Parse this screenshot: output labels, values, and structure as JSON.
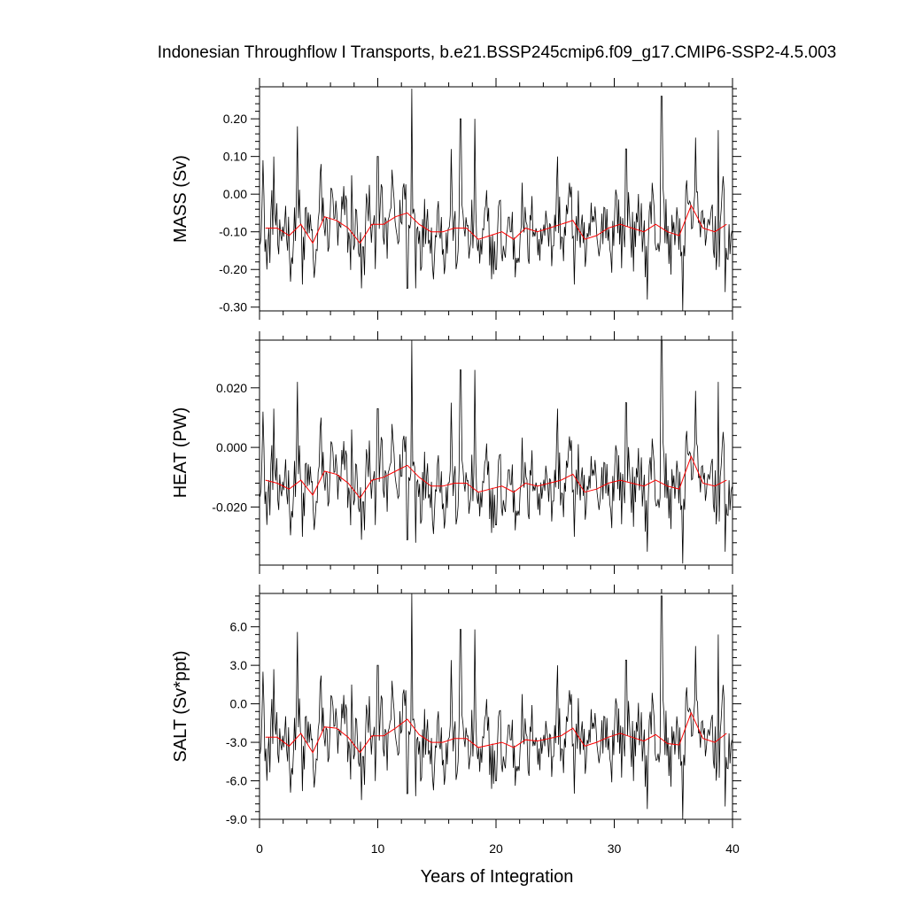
{
  "chart_data": {
    "type": "line",
    "title": "Indonesian Throughflow I Transports, b.e21.BSSP245cmip6.f09_g17.CMIP6-SSP2-4.5.003",
    "xlabel": "Years of Integration",
    "xlim": [
      0,
      40
    ],
    "x_ticks": [
      "0",
      "10",
      "20",
      "30",
      "40"
    ],
    "colors": {
      "monthly": "#000000",
      "annual": "#ff0000"
    },
    "annual_years": [
      0.5,
      1.5,
      2.5,
      3.5,
      4.5,
      5.5,
      6.5,
      7.5,
      8.5,
      9.5,
      10.5,
      11.5,
      12.5,
      13.5,
      14.5,
      15.5,
      16.5,
      17.5,
      18.5,
      19.5,
      20.5,
      21.5,
      22.5,
      23.5,
      24.5,
      25.5,
      26.5,
      27.5,
      28.5,
      29.5,
      30.5,
      31.5,
      32.5,
      33.5,
      34.5,
      35.5,
      36.5,
      37.5,
      38.5,
      39.5
    ],
    "panels": [
      {
        "ylabel": "MASS (Sv)",
        "ylim": [
          -0.31,
          0.285
        ],
        "y_ticks": [
          0.2,
          0.1,
          0.0,
          -0.1,
          -0.2,
          -0.3
        ],
        "y_tick_labels": [
          "0.20",
          "0.10",
          "0.00",
          "-0.10",
          "-0.20",
          "-0.30"
        ],
        "annual_values": [
          -0.09,
          -0.09,
          -0.11,
          -0.08,
          -0.13,
          -0.06,
          -0.07,
          -0.09,
          -0.13,
          -0.08,
          -0.08,
          -0.06,
          -0.05,
          -0.08,
          -0.1,
          -0.1,
          -0.09,
          -0.09,
          -0.12,
          -0.11,
          -0.1,
          -0.12,
          -0.09,
          -0.1,
          -0.09,
          -0.08,
          -0.07,
          -0.12,
          -0.11,
          -0.09,
          -0.08,
          -0.09,
          -0.1,
          -0.08,
          -0.1,
          -0.11,
          -0.03,
          -0.09,
          -0.1,
          -0.08
        ],
        "monthly_peaks": [
          {
            "x": 0.3,
            "y": 0.09
          },
          {
            "x": 0.6,
            "y": -0.2
          },
          {
            "x": 1.2,
            "y": 0.1
          },
          {
            "x": 1.6,
            "y": -0.16
          },
          {
            "x": 3.2,
            "y": 0.18
          },
          {
            "x": 3.6,
            "y": -0.24
          },
          {
            "x": 5.2,
            "y": 0.08
          },
          {
            "x": 7.8,
            "y": 0.05
          },
          {
            "x": 8.6,
            "y": -0.25
          },
          {
            "x": 10.0,
            "y": 0.1
          },
          {
            "x": 12.5,
            "y": -0.25
          },
          {
            "x": 12.9,
            "y": 0.28
          },
          {
            "x": 13.2,
            "y": -0.25
          },
          {
            "x": 16.2,
            "y": 0.12
          },
          {
            "x": 17.0,
            "y": 0.2
          },
          {
            "x": 18.2,
            "y": 0.2
          },
          {
            "x": 20.0,
            "y": -0.2
          },
          {
            "x": 25.2,
            "y": 0.1
          },
          {
            "x": 26.6,
            "y": -0.24
          },
          {
            "x": 31.0,
            "y": 0.12
          },
          {
            "x": 32.8,
            "y": -0.28
          },
          {
            "x": 34.0,
            "y": 0.26
          },
          {
            "x": 35.8,
            "y": -0.31
          },
          {
            "x": 36.9,
            "y": 0.15
          },
          {
            "x": 38.8,
            "y": 0.17
          },
          {
            "x": 39.4,
            "y": -0.26
          }
        ]
      },
      {
        "ylabel": "HEAT (PW)",
        "ylim": [
          -0.0395,
          0.036
        ],
        "y_ticks": [
          0.02,
          0.0,
          -0.02
        ],
        "y_tick_labels": [
          "0.020",
          "0.000",
          "-0.020"
        ],
        "annual_values": [
          -0.011,
          -0.012,
          -0.014,
          -0.011,
          -0.016,
          -0.008,
          -0.009,
          -0.012,
          -0.017,
          -0.011,
          -0.01,
          -0.008,
          -0.006,
          -0.01,
          -0.013,
          -0.013,
          -0.012,
          -0.012,
          -0.015,
          -0.014,
          -0.013,
          -0.015,
          -0.012,
          -0.013,
          -0.012,
          -0.011,
          -0.009,
          -0.015,
          -0.014,
          -0.012,
          -0.011,
          -0.012,
          -0.013,
          -0.011,
          -0.013,
          -0.014,
          -0.003,
          -0.012,
          -0.013,
          -0.011
        ],
        "monthly_peaks": [
          {
            "x": 0.3,
            "y": 0.012
          },
          {
            "x": 0.6,
            "y": -0.026
          },
          {
            "x": 1.2,
            "y": 0.013
          },
          {
            "x": 1.6,
            "y": -0.021
          },
          {
            "x": 3.2,
            "y": 0.022
          },
          {
            "x": 3.6,
            "y": -0.03
          },
          {
            "x": 5.2,
            "y": 0.01
          },
          {
            "x": 7.8,
            "y": 0.006
          },
          {
            "x": 8.6,
            "y": -0.031
          },
          {
            "x": 10.0,
            "y": 0.013
          },
          {
            "x": 12.5,
            "y": -0.031
          },
          {
            "x": 12.9,
            "y": 0.036
          },
          {
            "x": 13.2,
            "y": -0.032
          },
          {
            "x": 16.2,
            "y": 0.015
          },
          {
            "x": 17.0,
            "y": 0.026
          },
          {
            "x": 18.2,
            "y": 0.026
          },
          {
            "x": 20.0,
            "y": -0.026
          },
          {
            "x": 25.2,
            "y": 0.013
          },
          {
            "x": 26.6,
            "y": -0.03
          },
          {
            "x": 31.0,
            "y": 0.015
          },
          {
            "x": 32.8,
            "y": -0.035
          },
          {
            "x": 34.0,
            "y": 0.036
          },
          {
            "x": 35.8,
            "y": -0.039
          },
          {
            "x": 36.9,
            "y": 0.019
          },
          {
            "x": 38.8,
            "y": 0.022
          },
          {
            "x": 39.4,
            "y": -0.035
          }
        ]
      },
      {
        "ylabel": "SALT (Sv*ppt)",
        "ylim": [
          -9.0,
          8.6
        ],
        "y_ticks": [
          6.0,
          3.0,
          0.0,
          -3.0,
          -6.0,
          -9.0
        ],
        "y_tick_labels": [
          "6.0",
          "3.0",
          "0.0",
          "-3.0",
          "-6.0",
          "-9.0"
        ],
        "annual_values": [
          -2.6,
          -2.6,
          -3.3,
          -2.3,
          -3.8,
          -1.8,
          -1.9,
          -2.6,
          -3.8,
          -2.5,
          -2.5,
          -1.9,
          -1.2,
          -2.4,
          -3.0,
          -3.0,
          -2.7,
          -2.7,
          -3.4,
          -3.2,
          -3.0,
          -3.4,
          -2.8,
          -2.9,
          -2.7,
          -2.5,
          -1.9,
          -3.3,
          -3.0,
          -2.6,
          -2.3,
          -2.6,
          -2.9,
          -2.4,
          -3.1,
          -3.2,
          -0.7,
          -2.7,
          -3.0,
          -2.3
        ],
        "monthly_peaks": [
          {
            "x": 0.3,
            "y": 2.5
          },
          {
            "x": 0.6,
            "y": -6.0
          },
          {
            "x": 1.2,
            "y": 2.7
          },
          {
            "x": 1.6,
            "y": -4.6
          },
          {
            "x": 3.2,
            "y": 5.6
          },
          {
            "x": 3.6,
            "y": -6.8
          },
          {
            "x": 5.2,
            "y": 2.2
          },
          {
            "x": 7.8,
            "y": 1.5
          },
          {
            "x": 8.6,
            "y": -7.5
          },
          {
            "x": 10.0,
            "y": 3.0
          },
          {
            "x": 12.5,
            "y": -7.0
          },
          {
            "x": 12.9,
            "y": 8.6
          },
          {
            "x": 13.2,
            "y": -7.2
          },
          {
            "x": 16.2,
            "y": 3.4
          },
          {
            "x": 17.0,
            "y": 5.8
          },
          {
            "x": 18.2,
            "y": 5.8
          },
          {
            "x": 20.0,
            "y": -6.0
          },
          {
            "x": 25.2,
            "y": 3.0
          },
          {
            "x": 26.6,
            "y": -7.0
          },
          {
            "x": 31.0,
            "y": 3.4
          },
          {
            "x": 32.8,
            "y": -8.2
          },
          {
            "x": 34.0,
            "y": 8.4
          },
          {
            "x": 35.8,
            "y": -9.0
          },
          {
            "x": 36.9,
            "y": 4.5
          },
          {
            "x": 38.8,
            "y": 5.4
          },
          {
            "x": 39.4,
            "y": -8.0
          }
        ]
      }
    ]
  }
}
